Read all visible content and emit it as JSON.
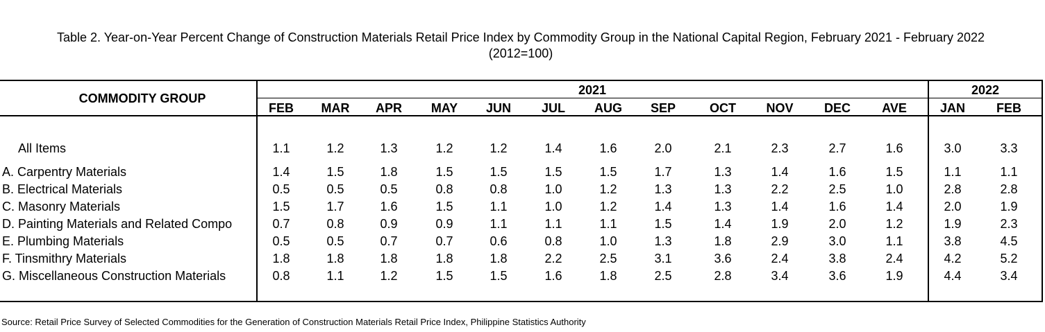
{
  "title": "Table 2. Year-on-Year Percent Change of Construction Materials Retail Price Index by Commodity Group in the National Capital Region, February 2021 - February 2022",
  "subtitle": "(2012=100)",
  "table": {
    "commodity_header": "COMMODITY GROUP",
    "year_2021": "2021",
    "year_2022": "2022",
    "months": [
      "FEB",
      "MAR",
      "APR",
      "MAY",
      "JUN",
      "JUL",
      "AUG",
      "SEP",
      "OCT",
      "NOV",
      "DEC",
      "AVE",
      "JAN",
      "FEB"
    ],
    "rows": [
      {
        "label": "All Items",
        "values": [
          "1.1",
          "1.2",
          "1.3",
          "1.2",
          "1.2",
          "1.4",
          "1.6",
          "2.0",
          "2.1",
          "2.3",
          "2.7",
          "1.6",
          "3.0",
          "3.3"
        ]
      },
      {
        "label": "A.  Carpentry Materials",
        "values": [
          "1.4",
          "1.5",
          "1.8",
          "1.5",
          "1.5",
          "1.5",
          "1.5",
          "1.7",
          "1.3",
          "1.4",
          "1.6",
          "1.5",
          "1.1",
          "1.1"
        ]
      },
      {
        "label": "B.  Electrical Materials",
        "values": [
          "0.5",
          "0.5",
          "0.5",
          "0.8",
          "0.8",
          "1.0",
          "1.2",
          "1.3",
          "1.3",
          "2.2",
          "2.5",
          "1.0",
          "2.8",
          "2.8"
        ]
      },
      {
        "label": "C.  Masonry Materials",
        "values": [
          "1.5",
          "1.7",
          "1.6",
          "1.5",
          "1.1",
          "1.0",
          "1.2",
          "1.4",
          "1.3",
          "1.4",
          "1.6",
          "1.4",
          "2.0",
          "1.9"
        ]
      },
      {
        "label": "D.  Painting Materials and Related Compo",
        "values": [
          "0.7",
          "0.8",
          "0.9",
          "0.9",
          "1.1",
          "1.1",
          "1.1",
          "1.5",
          "1.4",
          "1.9",
          "2.0",
          "1.2",
          "1.9",
          "2.3"
        ]
      },
      {
        "label": "E.  Plumbing Materials",
        "values": [
          "0.5",
          "0.5",
          "0.7",
          "0.7",
          "0.6",
          "0.8",
          "1.0",
          "1.3",
          "1.8",
          "2.9",
          "3.0",
          "1.1",
          "3.8",
          "4.5"
        ]
      },
      {
        "label": "F.  Tinsmithry Materials",
        "values": [
          "1.8",
          "1.8",
          "1.8",
          "1.8",
          "1.8",
          "2.2",
          "2.5",
          "3.1",
          "3.6",
          "2.4",
          "3.8",
          "2.4",
          "4.2",
          "5.2"
        ]
      },
      {
        "label": "G.  Miscellaneous Construction Materials",
        "values": [
          "0.8",
          "1.1",
          "1.2",
          "1.5",
          "1.5",
          "1.6",
          "1.8",
          "2.5",
          "2.8",
          "3.4",
          "3.6",
          "1.9",
          "4.4",
          "3.4"
        ]
      }
    ]
  },
  "source": "Source: Retail Price Survey of Selected Commodities for the Generation of Construction Materials Retail Price Index, Philippine Statistics Authority"
}
